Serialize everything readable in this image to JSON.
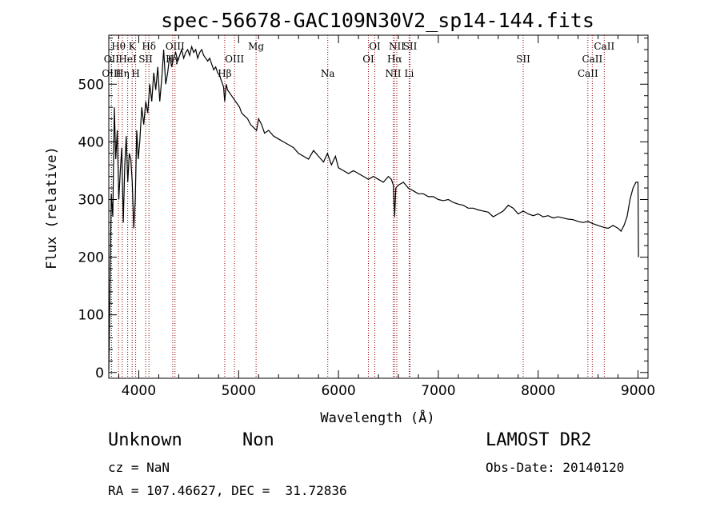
{
  "chart_data": {
    "type": "line",
    "title": "spec-56678-GAC109N30V2_sp14-144.fits",
    "xlabel": "Wavelength (Å)",
    "ylabel": "Flux (relative)",
    "xlim": [
      3700,
      9100
    ],
    "ylim": [
      -10,
      585
    ],
    "xticks": [
      4000,
      5000,
      6000,
      7000,
      8000,
      9000
    ],
    "yticks": [
      0,
      100,
      200,
      300,
      400,
      500
    ],
    "series": [
      {
        "x": [
          3700,
          3712,
          3725,
          3740,
          3755,
          3770,
          3785,
          3800,
          3815,
          3830,
          3845,
          3860,
          3875,
          3890,
          3905,
          3920,
          3935,
          3950,
          3965,
          3980,
          3995,
          4010,
          4030,
          4050,
          4070,
          4090,
          4110,
          4130,
          4150,
          4170,
          4190,
          4210,
          4230,
          4250,
          4270,
          4290,
          4310,
          4330,
          4350,
          4370,
          4390,
          4410,
          4430,
          4450,
          4470,
          4490,
          4510,
          4530,
          4550,
          4570,
          4590,
          4610,
          4630,
          4650,
          4670,
          4690,
          4710,
          4730,
          4750,
          4770,
          4790,
          4810,
          4830,
          4850,
          4861,
          4875,
          4890,
          4910,
          4930,
          4950,
          4970,
          4990,
          5010,
          5030,
          5060,
          5090,
          5120,
          5150,
          5180,
          5200,
          5230,
          5260,
          5300,
          5350,
          5400,
          5450,
          5500,
          5550,
          5600,
          5650,
          5700,
          5750,
          5800,
          5850,
          5890,
          5930,
          5970,
          6000,
          6050,
          6100,
          6150,
          6200,
          6250,
          6300,
          6350,
          6400,
          6450,
          6500,
          6530,
          6550,
          6563,
          6575,
          6600,
          6650,
          6700,
          6750,
          6800,
          6850,
          6900,
          6950,
          7000,
          7050,
          7100,
          7150,
          7200,
          7250,
          7300,
          7350,
          7400,
          7450,
          7500,
          7550,
          7600,
          7650,
          7700,
          7750,
          7800,
          7850,
          7900,
          7950,
          8000,
          8050,
          8100,
          8150,
          8200,
          8250,
          8300,
          8350,
          8400,
          8450,
          8500,
          8550,
          8600,
          8650,
          8700,
          8750,
          8800,
          8830,
          8860,
          8890,
          8920,
          8950,
          8980,
          9000,
          9005
        ],
        "y": [
          5,
          150,
          310,
          270,
          460,
          370,
          420,
          300,
          350,
          390,
          260,
          360,
          410,
          330,
          380,
          370,
          330,
          250,
          300,
          420,
          370,
          400,
          460,
          430,
          470,
          450,
          500,
          470,
          520,
          490,
          530,
          470,
          510,
          560,
          500,
          520,
          550,
          530,
          545,
          555,
          540,
          550,
          560,
          545,
          555,
          560,
          550,
          565,
          555,
          560,
          545,
          555,
          560,
          550,
          545,
          540,
          545,
          535,
          525,
          530,
          520,
          515,
          505,
          495,
          470,
          500,
          490,
          485,
          480,
          475,
          470,
          465,
          460,
          450,
          445,
          440,
          430,
          425,
          420,
          440,
          430,
          415,
          420,
          410,
          405,
          400,
          395,
          390,
          380,
          375,
          370,
          385,
          375,
          365,
          380,
          360,
          375,
          355,
          350,
          345,
          350,
          345,
          340,
          335,
          340,
          335,
          330,
          340,
          335,
          325,
          270,
          320,
          325,
          330,
          320,
          315,
          310,
          310,
          305,
          305,
          300,
          298,
          300,
          295,
          292,
          290,
          285,
          285,
          282,
          280,
          278,
          270,
          275,
          280,
          290,
          285,
          275,
          280,
          275,
          272,
          275,
          270,
          272,
          268,
          270,
          268,
          266,
          265,
          262,
          260,
          262,
          258,
          255,
          252,
          250,
          255,
          250,
          245,
          255,
          270,
          300,
          320,
          330,
          330,
          200
        ]
      }
    ],
    "lines": [
      {
        "label": "Hθ",
        "x": 3797,
        "row": 1
      },
      {
        "label": "OII",
        "x": 3727,
        "row": 2
      },
      {
        "label": "OIII",
        "x": 3727,
        "row": 3
      },
      {
        "label": "K",
        "x": 3934,
        "row": 1
      },
      {
        "label": "HeI",
        "x": 3889,
        "row": 2
      },
      {
        "label": "Hη",
        "x": 3835,
        "row": 3
      },
      {
        "label": "Hδ",
        "x": 4102,
        "row": 1
      },
      {
        "label": "SII",
        "x": 4069,
        "row": 2
      },
      {
        "label": "H",
        "x": 3969,
        "row": 3
      },
      {
        "label": "OIII",
        "x": 4363,
        "row": 1
      },
      {
        "label": "Hγ",
        "x": 4340,
        "row": 2
      },
      {
        "label": "Mg",
        "x": 5175,
        "row": 1
      },
      {
        "label": "OIII",
        "x": 4959,
        "row": 2
      },
      {
        "label": "Hβ",
        "x": 4861,
        "row": 3
      },
      {
        "label": "Na",
        "x": 5893,
        "row": 3
      },
      {
        "label": "OI",
        "x": 6364,
        "row": 1
      },
      {
        "label": "OI",
        "x": 6300,
        "row": 2
      },
      {
        "label": "NII",
        "x": 6584,
        "row": 1
      },
      {
        "label": "SII",
        "x": 6717,
        "row": 1
      },
      {
        "label": "Hα",
        "x": 6563,
        "row": 2
      },
      {
        "label": "NII",
        "x": 6548,
        "row": 3
      },
      {
        "label": "Li",
        "x": 6708,
        "row": 3
      },
      {
        "label": "SII",
        "x": 7850,
        "row": 2
      },
      {
        "label": "CaII",
        "x": 8662,
        "row": 1
      },
      {
        "label": "CaII",
        "x": 8542,
        "row": 2
      },
      {
        "label": "CaII",
        "x": 8498,
        "row": 3
      }
    ],
    "colors": {
      "spectrum": "#000000",
      "lines": "#8b0000"
    }
  },
  "info": {
    "class": "Unknown",
    "subclass": "Non",
    "survey": "LAMOST DR2",
    "cz": "cz = NaN",
    "obs_date": "Obs-Date: 20140120",
    "coords": "RA = 107.46627, DEC =  31.72836"
  }
}
